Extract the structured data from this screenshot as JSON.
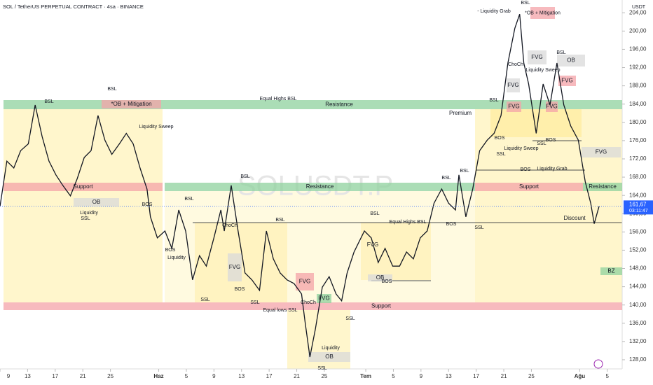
{
  "chart_data": {
    "type": "line",
    "title": "SOL / TetherUS PERPETUAL CONTRACT · 4sa · BINANCE",
    "watermark": "SOLUSDT.P",
    "price_unit": "USDT",
    "color": "#131722",
    "x": [
      0,
      1.0,
      2.0,
      3.0,
      4.1,
      5.1,
      6.1,
      7.1,
      8.1,
      9.1,
      10.2,
      11.2,
      12.2,
      13.2,
      14.2,
      15.2,
      16.2,
      17.3,
      18.3,
      19.3,
      20.3,
      21.3,
      21.8,
      22.8,
      23.9,
      24.9,
      25.9,
      26.9,
      27.9,
      28.9,
      29.9,
      31.0,
      32.0,
      32.5,
      33.5,
      34.5,
      35.5,
      36.5,
      37.6,
      38.6,
      39.6,
      40.6,
      41.6,
      42.6,
      43.7,
      44.2,
      44.9,
      45.7,
      46.7,
      47.7,
      48.7,
      49.5,
      50.3,
      51.3,
      52.8,
      53.8,
      54.8,
      55.8,
      56.9,
      57.9,
      58.9,
      59.9,
      60.9,
      61.9,
      62.9,
      64.0,
      65.0,
      66.0,
      66.5,
      67.5,
      68.5,
      69.5,
      70.6,
      71.6,
      72.6,
      73.6,
      74.6,
      75.3,
      75.9,
      76.6,
      77.7,
      78.7,
      79.7,
      80.7,
      81.7,
      82.7,
      83.8,
      84.8,
      85.6,
      86.1,
      86.8
    ],
    "values": [
      161.6,
      171.5,
      170.0,
      173.8,
      175.3,
      183.8,
      176.9,
      171.5,
      168.5,
      166.2,
      163.9,
      167.7,
      172.3,
      173.8,
      181.5,
      176.1,
      173.0,
      175.3,
      177.6,
      175.3,
      170.0,
      165.4,
      159.3,
      154.7,
      156.2,
      152.4,
      160.8,
      156.2,
      145.5,
      150.8,
      148.5,
      154.7,
      160.8,
      156.2,
      166.2,
      156.2,
      147.0,
      145.5,
      143.2,
      156.2,
      150.1,
      147.0,
      145.5,
      144.7,
      142.4,
      136.3,
      128.6,
      134.7,
      143.9,
      146.2,
      142.4,
      140.9,
      147.0,
      151.6,
      156.2,
      154.7,
      149.3,
      152.4,
      148.5,
      148.5,
      151.6,
      150.1,
      154.7,
      156.2,
      162.3,
      165.4,
      162.3,
      160.8,
      168.5,
      159.3,
      165.4,
      173.8,
      176.1,
      177.6,
      181.5,
      193.0,
      200.6,
      203.7,
      193.0,
      188.4,
      177.6,
      188.4,
      183.8,
      193.0,
      183.8,
      179.2,
      176.1,
      167.0,
      162.3,
      157.8,
      161.6
    ],
    "xlim": [
      0,
      89.85
    ],
    "ylim": [
      126,
      206.8
    ],
    "xticks": [
      {
        "value": 0,
        "label": "9"
      },
      {
        "value": 4,
        "label": "13"
      },
      {
        "value": 8,
        "label": "17"
      },
      {
        "value": 12,
        "label": "21"
      },
      {
        "value": 16,
        "label": "25"
      },
      {
        "value": 23,
        "label": "Haz"
      },
      {
        "value": 27,
        "label": "5"
      },
      {
        "value": 31,
        "label": "9"
      },
      {
        "value": 35,
        "label": "13"
      },
      {
        "value": 39,
        "label": "17"
      },
      {
        "value": 43,
        "label": "21"
      },
      {
        "value": 47,
        "label": "25"
      },
      {
        "value": 53,
        "label": "Tem"
      },
      {
        "value": 57,
        "label": "5"
      },
      {
        "value": 61,
        "label": "9"
      },
      {
        "value": 65,
        "label": "13"
      },
      {
        "value": 69,
        "label": "17"
      },
      {
        "value": 73,
        "label": "21"
      },
      {
        "value": 77,
        "label": "25"
      },
      {
        "value": 84,
        "label": "Ağu"
      },
      {
        "value": 88,
        "label": "5"
      }
    ],
    "yticks": [
      {
        "value": 128,
        "label": "128,00"
      },
      {
        "value": 132,
        "label": "132,00"
      },
      {
        "value": 136,
        "label": "136,00"
      },
      {
        "value": 140,
        "label": "140,00"
      },
      {
        "value": 144,
        "label": "144,00"
      },
      {
        "value": 148,
        "label": "148,00"
      },
      {
        "value": 152,
        "label": "152,00"
      },
      {
        "value": 156,
        "label": "156,00"
      },
      {
        "value": 160,
        "label": "160,00"
      },
      {
        "value": 164,
        "label": "164,00"
      },
      {
        "value": 168,
        "label": "168,00"
      },
      {
        "value": 172,
        "label": "172,00"
      },
      {
        "value": 176,
        "label": "176,00"
      },
      {
        "value": 180,
        "label": "180,00"
      },
      {
        "value": 184,
        "label": "184,00"
      },
      {
        "value": 188,
        "label": "188,00"
      },
      {
        "value": 192,
        "label": "192,00"
      },
      {
        "value": 196,
        "label": "196,00"
      },
      {
        "value": 200,
        "label": "200,00"
      },
      {
        "value": 204,
        "label": "204,00"
      }
    ],
    "last_price": {
      "value": 161.67,
      "label": "161,67"
    },
    "countdown": "03:11:47",
    "zones": [
      {
        "label": "Resistance",
        "color": "#8fd19e"
      },
      {
        "label": "Support",
        "color": "#f4a3a8"
      },
      {
        "label": "Resistance",
        "color": "#8fd19e"
      },
      {
        "label": "Support",
        "color": "#f4a3a8"
      },
      {
        "label": "Resistance",
        "color": "#8fd19e"
      },
      {
        "label": "Support",
        "color": "#f4a3a8"
      },
      {
        "label": "OB",
        "color": "#d9d9d9"
      },
      {
        "label": "*OB + Mitigation",
        "color": "#f4a3a8"
      },
      {
        "label": "FVG",
        "color": "#d9d9d9"
      },
      {
        "label": "FVG",
        "color": "#f4a3a8"
      },
      {
        "label": "FVG",
        "color": "#8fd19e"
      },
      {
        "label": "OB",
        "color": "#d9d9d9"
      },
      {
        "label": "OB",
        "color": "#d9d9d9"
      },
      {
        "label": "FVG",
        "color": "#d9d9d9"
      },
      {
        "label": "FVG",
        "color": "#f4a3a8"
      },
      {
        "label": "FVG",
        "color": "#d9d9d9"
      },
      {
        "label": "OB",
        "color": "#d9d9d9"
      },
      {
        "label": "FVG",
        "color": "#f4a3a8"
      },
      {
        "label": "FVG",
        "color": "#f4a3a8"
      },
      {
        "label": "*OB + Mitigation",
        "color": "#f4a3a8"
      },
      {
        "label": "FVG",
        "color": "#d9d9d9"
      },
      {
        "label": "BZ",
        "color": "#8fd19e"
      }
    ],
    "annotations": [
      "BSL",
      "BSL",
      "Equal Highs BSL",
      "Liquidity Sweep",
      "BSL",
      "BSL",
      "BOS",
      "Liquidity",
      "SSL",
      "BOS",
      "Liquidity",
      "ChoCh",
      "BSL",
      "BOS",
      "SSL",
      "SSL",
      "Equal lows SSL",
      "ChoCh",
      "SSL",
      "Liquidity",
      "SSL",
      "BSL",
      "Equal Highs BSL",
      "BOS",
      "SSL",
      "BOS",
      "BSL",
      "BSL",
      "BOS",
      "Liquidity Grab",
      "SSL",
      "Liquidity Sweep",
      "BOS",
      "BOS",
      "SSL",
      "BSL",
      "ChoCh",
      "Liquidity Sweep",
      "BSL",
      "- Liquidity Grab",
      "BSL",
      "FVG",
      "Premium",
      "Discount"
    ]
  }
}
